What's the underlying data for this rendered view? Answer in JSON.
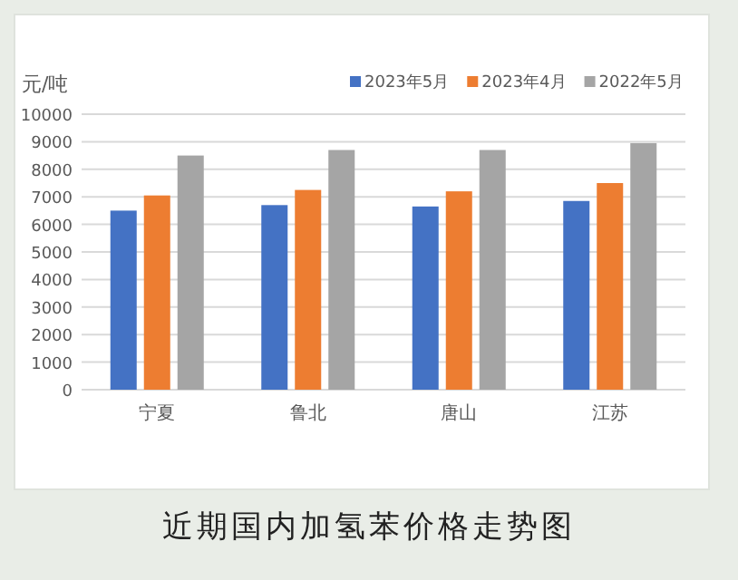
{
  "chart_data": {
    "type": "bar",
    "title": "近期国内加氢苯价格走势图",
    "ylabel": "元/吨",
    "categories": [
      "宁夏",
      "鲁北",
      "唐山",
      "江苏"
    ],
    "series": [
      {
        "name": "2023年5月",
        "color": "#4472c4",
        "values": [
          6500,
          6700,
          6650,
          6850
        ]
      },
      {
        "name": "2023年4月",
        "color": "#ed7d31",
        "values": [
          7050,
          7250,
          7200,
          7500
        ]
      },
      {
        "name": "2022年5月",
        "color": "#a5a5a5",
        "values": [
          8500,
          8700,
          8700,
          8950
        ]
      }
    ],
    "ylim": [
      0,
      10000
    ],
    "yticks": [
      0,
      1000,
      2000,
      3000,
      4000,
      5000,
      6000,
      7000,
      8000,
      9000,
      10000
    ],
    "grid": "y",
    "legend": "top right"
  }
}
